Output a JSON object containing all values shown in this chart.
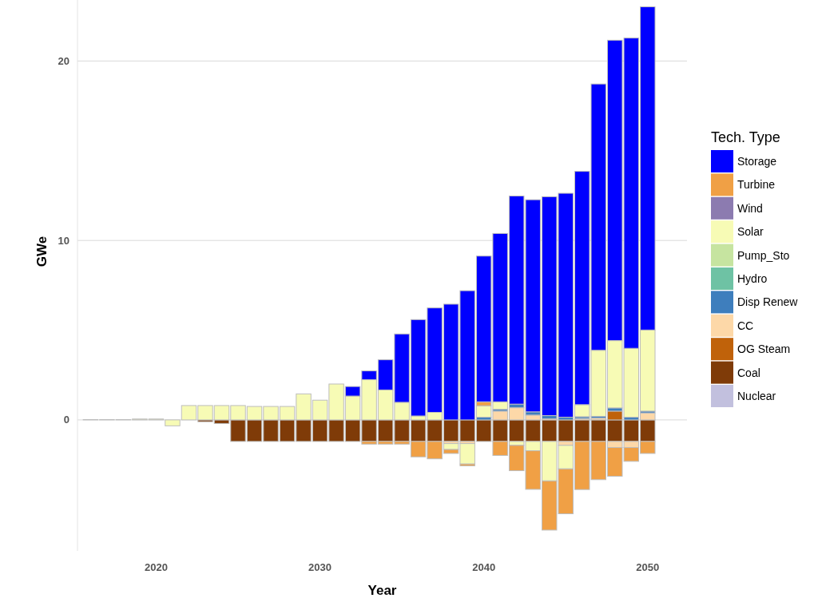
{
  "chart_data": {
    "type": "bar",
    "stacked": true,
    "xlabel": "Year",
    "ylabel": "GWe",
    "legend_title": "Tech. Type",
    "legend": "right",
    "grid": "y",
    "x": [
      2016,
      2017,
      2018,
      2019,
      2020,
      2021,
      2022,
      2023,
      2024,
      2025,
      2026,
      2027,
      2028,
      2029,
      2030,
      2031,
      2032,
      2033,
      2034,
      2035,
      2036,
      2037,
      2038,
      2039,
      2040,
      2041,
      2042,
      2043,
      2044,
      2045,
      2046,
      2047,
      2048,
      2049,
      2050
    ],
    "xlim": [
      2015.2,
      2052.4
    ],
    "xticks": [
      2020,
      2030,
      2040,
      2050
    ],
    "ylim": [
      -7.3,
      23.4
    ],
    "yticks": [
      0,
      10,
      20
    ],
    "series": [
      {
        "name": "Nuclear",
        "color": "#c2c0de",
        "values": [
          null,
          null,
          null,
          null,
          null,
          null,
          null,
          null,
          null,
          null,
          null,
          null,
          null,
          null,
          null,
          null,
          null,
          null,
          null,
          null,
          null,
          null,
          null,
          null,
          null,
          null,
          null,
          null,
          null,
          null,
          null,
          null,
          null,
          null,
          null
        ]
      },
      {
        "name": "Coal",
        "color": "#7f3b08",
        "values": [
          null,
          null,
          null,
          null,
          null,
          null,
          null,
          -0.1,
          -0.2,
          -1.2,
          -1.2,
          -1.2,
          -1.2,
          -1.2,
          -1.2,
          -1.2,
          -1.2,
          -1.2,
          -1.2,
          -1.2,
          -1.2,
          -1.2,
          -1.2,
          -1.2,
          -1.2,
          -1.2,
          -1.2,
          -1.2,
          -1.2,
          -1.2,
          -1.2,
          -1.2,
          -1.2,
          -1.2,
          -1.2
        ]
      },
      {
        "name": "OG Steam",
        "color": "#c0620a",
        "values": [
          null,
          null,
          null,
          null,
          null,
          null,
          null,
          null,
          null,
          null,
          null,
          null,
          null,
          null,
          null,
          null,
          null,
          null,
          null,
          null,
          null,
          null,
          null,
          null,
          null,
          null,
          null,
          null,
          null,
          null,
          null,
          null,
          0.49,
          null,
          null
        ]
      },
      {
        "name": "CC",
        "color": "#fdd8a8",
        "values": [
          null,
          null,
          null,
          null,
          null,
          null,
          null,
          null,
          null,
          null,
          null,
          null,
          null,
          null,
          null,
          null,
          null,
          null,
          null,
          null,
          null,
          null,
          -0.12,
          -0.12,
          null,
          0.49,
          0.68,
          0.27,
          0.06,
          -0.22,
          0.08,
          0.1,
          -0.34,
          -0.34,
          0.39
        ]
      },
      {
        "name": "Disp Renew",
        "color": "#3e7ebd",
        "values": [
          null,
          null,
          null,
          null,
          null,
          null,
          null,
          null,
          null,
          null,
          null,
          null,
          null,
          null,
          null,
          null,
          null,
          null,
          null,
          null,
          null,
          null,
          null,
          null,
          0.15,
          0.1,
          0.2,
          0.18,
          0.18,
          0.15,
          0.1,
          0.1,
          0.18,
          0.15,
          0.1
        ]
      },
      {
        "name": "Hydro",
        "color": "#6ec2a4",
        "values": [
          null,
          null,
          null,
          null,
          null,
          null,
          null,
          null,
          null,
          null,
          null,
          null,
          null,
          null,
          null,
          null,
          null,
          null,
          null,
          null,
          null,
          null,
          null,
          null,
          null,
          null,
          null,
          null,
          null,
          null,
          null,
          null,
          null,
          null,
          null
        ]
      },
      {
        "name": "Pump_Sto",
        "color": "#c6e4a0",
        "values": [
          null,
          null,
          null,
          null,
          null,
          null,
          null,
          null,
          null,
          null,
          null,
          null,
          null,
          null,
          null,
          null,
          null,
          null,
          null,
          null,
          null,
          null,
          null,
          null,
          null,
          null,
          null,
          null,
          null,
          null,
          null,
          null,
          null,
          null,
          null
        ]
      },
      {
        "name": "Solar",
        "color": "#f7fbb5",
        "values": [
          0.02,
          0.02,
          0.02,
          0.05,
          0.05,
          -0.33,
          0.8,
          0.8,
          0.8,
          0.8,
          0.75,
          0.75,
          0.75,
          1.45,
          1.1,
          2.0,
          1.33,
          2.24,
          1.67,
          0.98,
          0.22,
          0.42,
          -0.33,
          -1.14,
          0.64,
          0.42,
          -0.22,
          -0.52,
          -2.2,
          -1.31,
          0.67,
          3.68,
          3.75,
          3.84,
          4.52
        ]
      },
      {
        "name": "Wind",
        "color": "#8c7bb0",
        "values": [
          null,
          null,
          null,
          null,
          null,
          null,
          null,
          null,
          null,
          null,
          null,
          null,
          null,
          null,
          null,
          null,
          null,
          null,
          null,
          null,
          null,
          null,
          null,
          null,
          null,
          null,
          null,
          null,
          null,
          null,
          null,
          null,
          null,
          null,
          null
        ]
      },
      {
        "name": "Turbine",
        "color": "#f0a045",
        "values": [
          null,
          null,
          null,
          null,
          null,
          null,
          null,
          null,
          null,
          null,
          null,
          null,
          null,
          null,
          null,
          null,
          null,
          -0.15,
          -0.15,
          -0.15,
          -0.86,
          -0.97,
          -0.22,
          -0.1,
          0.22,
          -0.78,
          -1.41,
          -2.15,
          -2.74,
          -2.5,
          -2.68,
          -2.13,
          -1.6,
          -0.77,
          -0.67
        ]
      },
      {
        "name": "Storage",
        "color": "#0000ff",
        "values": [
          null,
          null,
          null,
          null,
          null,
          null,
          null,
          null,
          null,
          null,
          null,
          null,
          null,
          null,
          null,
          null,
          0.53,
          0.49,
          1.68,
          3.81,
          5.37,
          5.82,
          6.45,
          7.2,
          8.12,
          9.38,
          11.6,
          11.82,
          12.2,
          12.48,
          13.0,
          14.84,
          16.74,
          17.29,
          18.01
        ]
      }
    ]
  }
}
